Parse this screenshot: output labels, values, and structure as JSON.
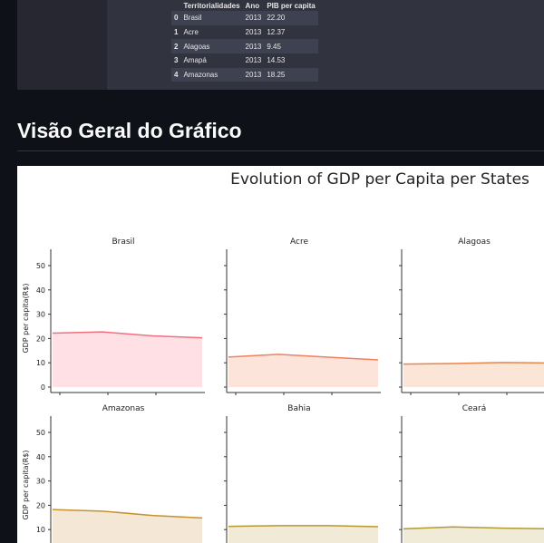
{
  "table": {
    "columns": [
      "",
      "Territorialidades",
      "Ano",
      "PIB per capita"
    ],
    "rows": [
      [
        "0",
        "Brasil",
        "2013",
        "22.20"
      ],
      [
        "1",
        "Acre",
        "2013",
        "12.37"
      ],
      [
        "2",
        "Alagoas",
        "2013",
        "9.45"
      ],
      [
        "3",
        "Amapá",
        "2013",
        "14.53"
      ],
      [
        "4",
        "Amazonas",
        "2013",
        "18.25"
      ]
    ]
  },
  "section_title": "Visão Geral do Gráfico",
  "chart_data": {
    "type": "area",
    "title": "Evolution of GDP per Capita per States",
    "ylabel": "GDP per capita(R$)",
    "ylim": [
      0,
      57
    ],
    "yticks": [
      0,
      10,
      20,
      30,
      40,
      50
    ],
    "x": [
      0,
      1,
      2,
      3
    ],
    "panels": [
      {
        "name": "Brasil",
        "values": [
          22.2,
          22.7,
          21.1,
          20.3
        ],
        "line": "#f07080",
        "fill": "#ffe0e4"
      },
      {
        "name": "Acre",
        "values": [
          12.37,
          13.5,
          12.3,
          11.2
        ],
        "line": "#ef8060",
        "fill": "#fde4da"
      },
      {
        "name": "Alagoas",
        "values": [
          9.45,
          9.7,
          10.1,
          9.9
        ],
        "line": "#e8864a",
        "fill": "#fbe5d6"
      },
      {
        "name": "Amazonas",
        "values": [
          18.25,
          17.6,
          15.8,
          14.8
        ],
        "line": "#c4922e",
        "fill": "#f4e7d6"
      },
      {
        "name": "Bahia",
        "values": [
          11.3,
          11.6,
          11.6,
          11.2
        ],
        "line": "#b8972e",
        "fill": "#f1ead6"
      },
      {
        "name": "Ceará",
        "values": [
          10.3,
          11.1,
          10.6,
          10.3
        ],
        "line": "#b39a2e",
        "fill": "#f0ebd6"
      }
    ]
  }
}
